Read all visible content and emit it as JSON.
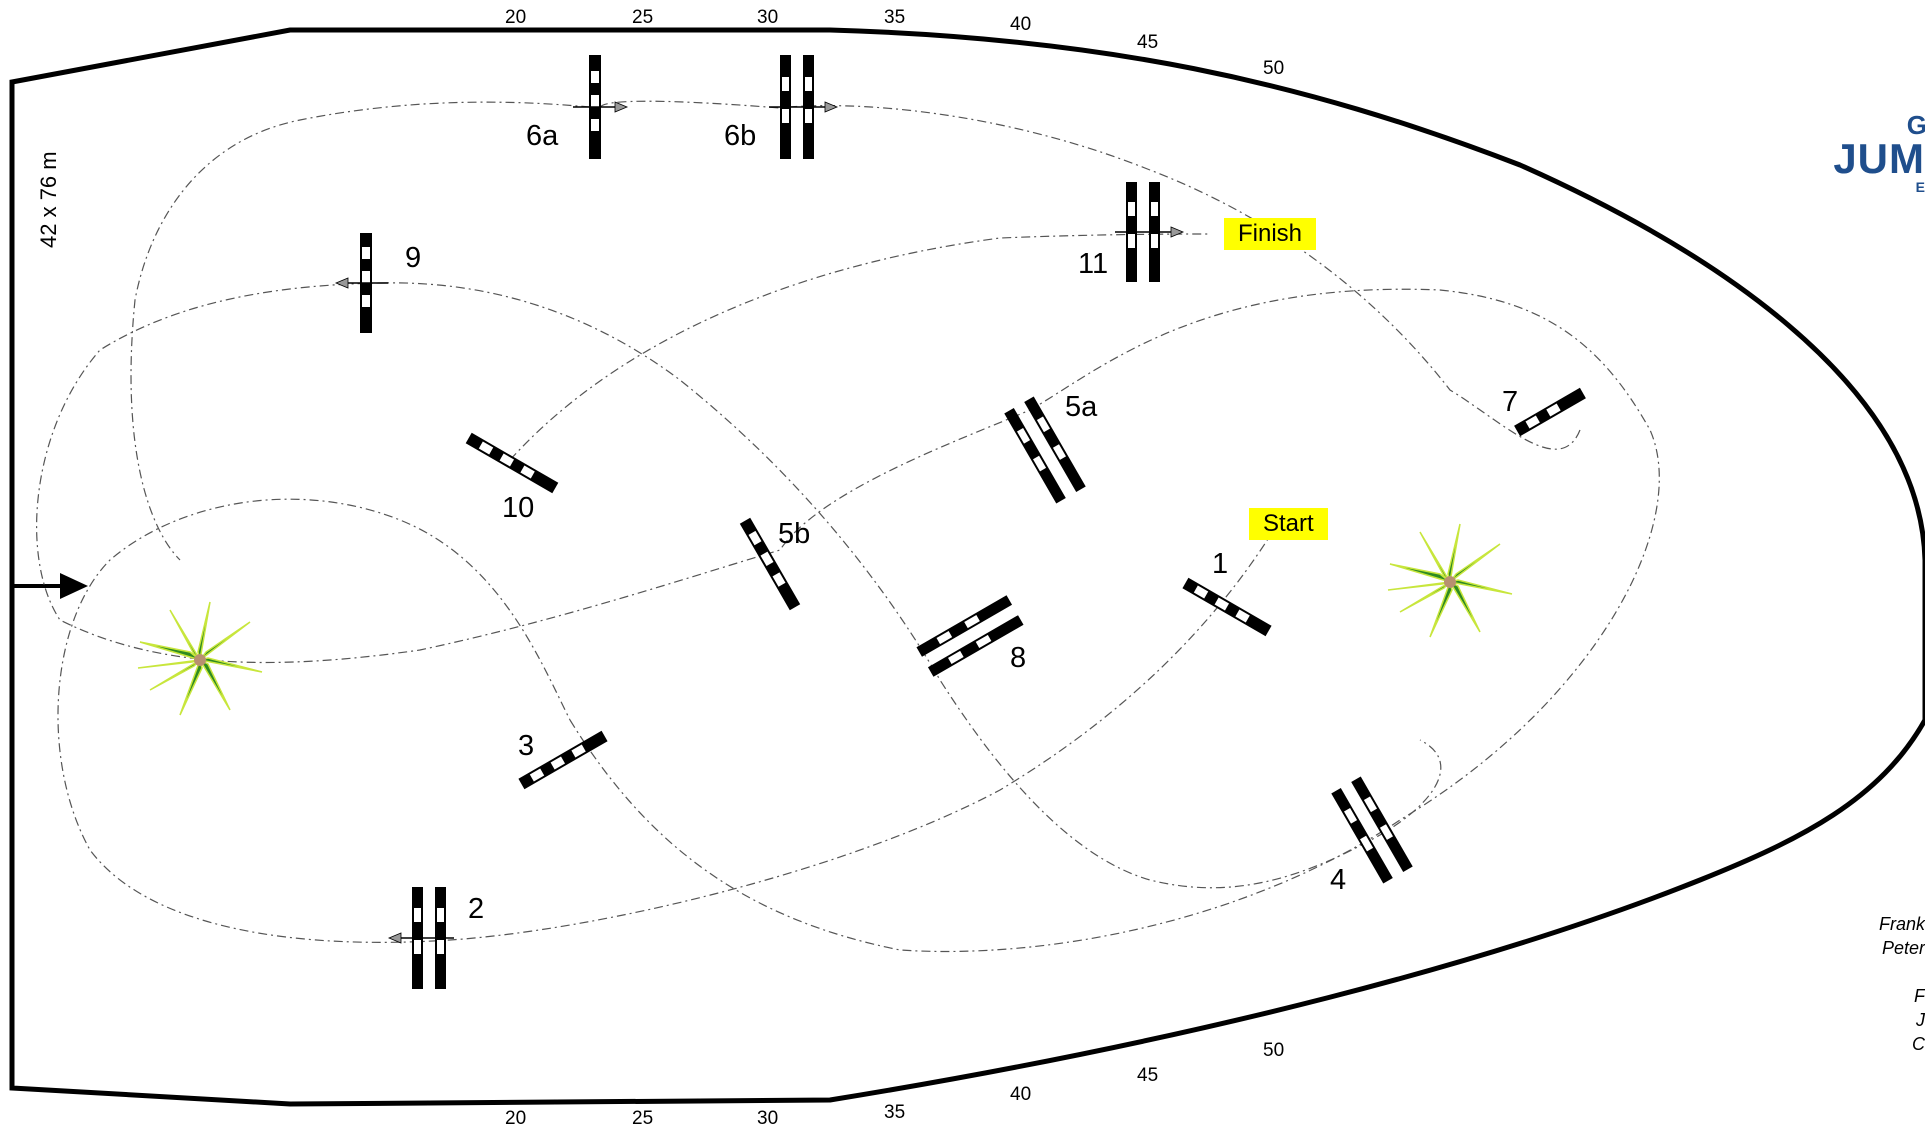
{
  "arena": {
    "dimensions": "42 x 76 m",
    "start_label": "Start",
    "finish_label": "Finish"
  },
  "ruler_top": [
    "20",
    "25",
    "30",
    "35",
    "40",
    "45",
    "50"
  ],
  "ruler_bottom": [
    "20",
    "25",
    "30",
    "35",
    "40",
    "45",
    "50"
  ],
  "fences": [
    {
      "id": "1",
      "label": "1",
      "type": "vertical"
    },
    {
      "id": "2",
      "label": "2",
      "type": "oxer"
    },
    {
      "id": "3",
      "label": "3",
      "type": "vertical"
    },
    {
      "id": "4",
      "label": "4",
      "type": "oxer"
    },
    {
      "id": "5a",
      "label": "5a",
      "type": "oxer"
    },
    {
      "id": "5b",
      "label": "5b",
      "type": "vertical"
    },
    {
      "id": "6a",
      "label": "6a",
      "type": "vertical"
    },
    {
      "id": "6b",
      "label": "6b",
      "type": "oxer"
    },
    {
      "id": "7",
      "label": "7",
      "type": "vertical"
    },
    {
      "id": "8",
      "label": "8",
      "type": "oxer"
    },
    {
      "id": "9",
      "label": "9",
      "type": "vertical"
    },
    {
      "id": "10",
      "label": "10",
      "type": "vertical"
    },
    {
      "id": "11",
      "label": "11",
      "type": "oxer"
    }
  ],
  "logo": {
    "line1": "G",
    "line2": "JUM",
    "line3": "E"
  },
  "credits": [
    "Frank",
    "Peter",
    "",
    "F",
    "J",
    "C"
  ],
  "colors": {
    "tag": "#ffff00",
    "plant": "#2e8b22",
    "logo": "#1f4e8c"
  },
  "icons": [
    "entrance-arrow-icon",
    "plant-icon"
  ]
}
